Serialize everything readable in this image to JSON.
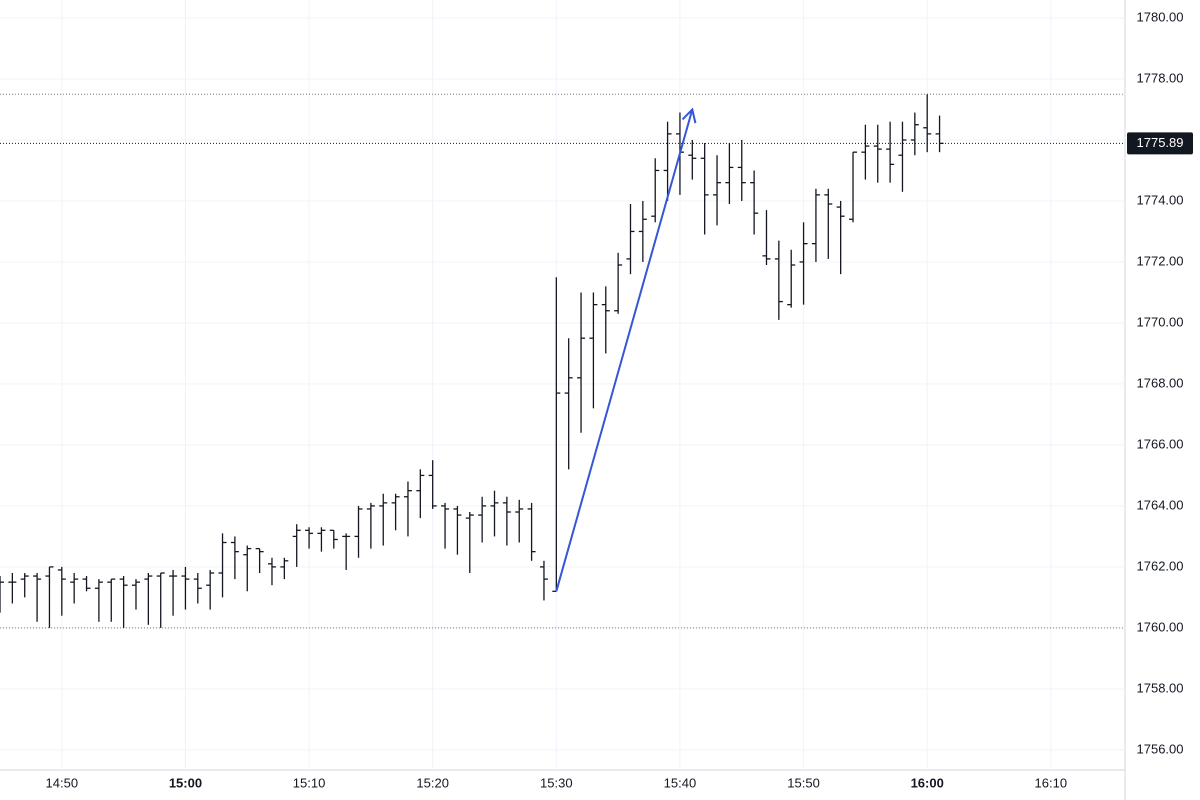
{
  "chart_data": {
    "type": "ohlc",
    "x": [
      "14:45",
      "14:46",
      "14:47",
      "14:48",
      "14:49",
      "14:50",
      "14:51",
      "14:52",
      "14:53",
      "14:54",
      "14:55",
      "14:56",
      "14:57",
      "14:58",
      "14:59",
      "15:00",
      "15:01",
      "15:02",
      "15:03",
      "15:04",
      "15:05",
      "15:06",
      "15:07",
      "15:08",
      "15:09",
      "15:10",
      "15:11",
      "15:12",
      "15:13",
      "15:14",
      "15:15",
      "15:16",
      "15:17",
      "15:18",
      "15:19",
      "15:20",
      "15:21",
      "15:22",
      "15:23",
      "15:24",
      "15:25",
      "15:26",
      "15:27",
      "15:28",
      "15:29",
      "15:30",
      "15:31",
      "15:32",
      "15:33",
      "15:34",
      "15:35",
      "15:36",
      "15:37",
      "15:38",
      "15:39",
      "15:40",
      "15:41",
      "15:42",
      "15:43",
      "15:44",
      "15:45",
      "15:46",
      "15:47",
      "15:48",
      "15:49",
      "15:50",
      "15:51",
      "15:52",
      "15:53",
      "15:54",
      "15:55",
      "15:56",
      "15:57",
      "15:58",
      "15:59",
      "16:00",
      "16:01"
    ],
    "open": [
      1761.6,
      1761.5,
      1761.6,
      1761.7,
      1761.7,
      1761.9,
      1761.5,
      1761.6,
      1761.3,
      1761.5,
      1761.6,
      1761.4,
      1761.6,
      1761.7,
      1761.7,
      1761.7,
      1761.6,
      1761.4,
      1761.8,
      1762.8,
      1762.4,
      1762.6,
      1762.1,
      1762.0,
      1763.0,
      1763.2,
      1763.1,
      1763.2,
      1763.0,
      1763.0,
      1763.9,
      1764.0,
      1764.1,
      1764.3,
      1764.5,
      1765.0,
      1764.0,
      1763.9,
      1763.6,
      1763.7,
      1764.0,
      1764.1,
      1763.8,
      1763.9,
      1762.0,
      1761.2,
      1767.7,
      1768.2,
      1769.5,
      1770.6,
      1770.4,
      1772.1,
      1773.0,
      1773.5,
      1775.0,
      1776.2,
      1775.5,
      1775.4,
      1774.2,
      1774.6,
      1775.1,
      1774.6,
      1772.2,
      1772.1,
      1770.6,
      1772.0,
      1772.6,
      1774.2,
      1773.8,
      1773.4,
      1775.6,
      1775.8,
      1775.7,
      1775.5,
      1776.0,
      1776.4,
      1776.2
    ],
    "high": [
      1761.7,
      1761.8,
      1761.8,
      1761.8,
      1762.0,
      1762.0,
      1761.8,
      1761.7,
      1761.6,
      1761.6,
      1761.7,
      1761.6,
      1761.8,
      1761.8,
      1761.9,
      1762.0,
      1761.8,
      1761.9,
      1763.1,
      1763.0,
      1762.7,
      1762.6,
      1762.3,
      1762.3,
      1763.4,
      1763.3,
      1763.3,
      1763.2,
      1763.1,
      1764.0,
      1764.1,
      1764.4,
      1764.4,
      1764.8,
      1765.2,
      1765.5,
      1764.1,
      1764.0,
      1763.8,
      1764.3,
      1764.5,
      1764.3,
      1764.2,
      1764.1,
      1762.2,
      1771.5,
      1769.5,
      1771.0,
      1771.0,
      1771.2,
      1772.3,
      1773.9,
      1774.0,
      1775.4,
      1776.6,
      1776.9,
      1776.0,
      1775.9,
      1775.5,
      1775.9,
      1776.0,
      1775.0,
      1773.7,
      1772.7,
      1772.4,
      1773.3,
      1774.4,
      1774.4,
      1774.0,
      1775.6,
      1776.5,
      1776.5,
      1776.6,
      1776.6,
      1776.9,
      1777.5,
      1776.8
    ],
    "low": [
      1760.5,
      1760.8,
      1761.0,
      1760.2,
      1760.0,
      1760.4,
      1760.8,
      1761.2,
      1760.2,
      1760.2,
      1760.0,
      1760.6,
      1760.1,
      1760.0,
      1760.4,
      1760.6,
      1760.8,
      1760.6,
      1761.0,
      1761.6,
      1761.2,
      1761.8,
      1761.4,
      1761.6,
      1762.0,
      1762.6,
      1762.5,
      1762.6,
      1761.9,
      1762.3,
      1762.6,
      1762.7,
      1763.2,
      1763.0,
      1763.6,
      1763.9,
      1762.6,
      1762.4,
      1761.8,
      1762.8,
      1763.0,
      1762.7,
      1762.8,
      1762.2,
      1760.9,
      1761.2,
      1765.2,
      1766.4,
      1767.2,
      1769.0,
      1770.3,
      1771.6,
      1772.0,
      1773.3,
      1774.0,
      1774.2,
      1774.7,
      1772.9,
      1773.2,
      1773.9,
      1774.0,
      1772.9,
      1771.9,
      1770.1,
      1770.5,
      1770.6,
      1772.0,
      1772.1,
      1771.6,
      1773.3,
      1774.7,
      1774.6,
      1774.6,
      1774.3,
      1775.5,
      1775.6,
      1775.6
    ],
    "close": [
      1761.5,
      1761.5,
      1761.7,
      1761.6,
      1762.0,
      1761.6,
      1761.6,
      1761.3,
      1761.5,
      1761.6,
      1761.4,
      1761.5,
      1761.7,
      1761.8,
      1761.7,
      1761.6,
      1761.3,
      1761.8,
      1762.8,
      1762.5,
      1762.6,
      1762.5,
      1762.0,
      1762.2,
      1763.2,
      1763.1,
      1763.2,
      1762.9,
      1763.0,
      1763.9,
      1764.0,
      1764.1,
      1764.3,
      1764.5,
      1765.0,
      1764.0,
      1763.9,
      1763.7,
      1763.7,
      1764.0,
      1764.1,
      1763.8,
      1763.9,
      1762.5,
      1761.6,
      1767.7,
      1768.2,
      1769.5,
      1770.6,
      1770.4,
      1771.9,
      1773.0,
      1773.4,
      1775.0,
      1776.2,
      1775.6,
      1775.4,
      1774.2,
      1774.6,
      1775.1,
      1774.6,
      1773.6,
      1772.1,
      1770.7,
      1771.9,
      1772.6,
      1774.2,
      1773.9,
      1773.5,
      1775.6,
      1775.8,
      1775.7,
      1775.2,
      1776.0,
      1776.5,
      1776.2,
      1775.89
    ],
    "color": "#131722",
    "xlim": [
      "14:45",
      "16:16"
    ],
    "xticks": [
      "14:50",
      "15:00",
      "15:10",
      "15:20",
      "15:30",
      "15:40",
      "15:50",
      "16:00",
      "16:10"
    ],
    "ylim": [
      1755.34,
      1780.59
    ],
    "yticks": [
      {
        "value": 1756,
        "label": "1756.00"
      },
      {
        "value": 1758,
        "label": "1758.00"
      },
      {
        "value": 1760,
        "label": "1760.00"
      },
      {
        "value": 1762,
        "label": "1762.00"
      },
      {
        "value": 1764,
        "label": "1764.00"
      },
      {
        "value": 1766,
        "label": "1766.00"
      },
      {
        "value": 1768,
        "label": "1768.00"
      },
      {
        "value": 1770,
        "label": "1770.00"
      },
      {
        "value": 1772,
        "label": "1772.00"
      },
      {
        "value": 1774,
        "label": "1774.00"
      },
      {
        "value": 1776,
        "label": "1776.00"
      },
      {
        "value": 1778,
        "label": "1778.00"
      },
      {
        "value": 1780,
        "label": "1780.00"
      }
    ],
    "grid": true,
    "horizontal_lines": [
      1777.5,
      1760
    ],
    "price_line": 1775.89,
    "arrow": {
      "x": [
        "15:30",
        "15:41"
      ],
      "y": [
        1761.2,
        1777.0
      ],
      "color": "#3556d6"
    }
  }
}
